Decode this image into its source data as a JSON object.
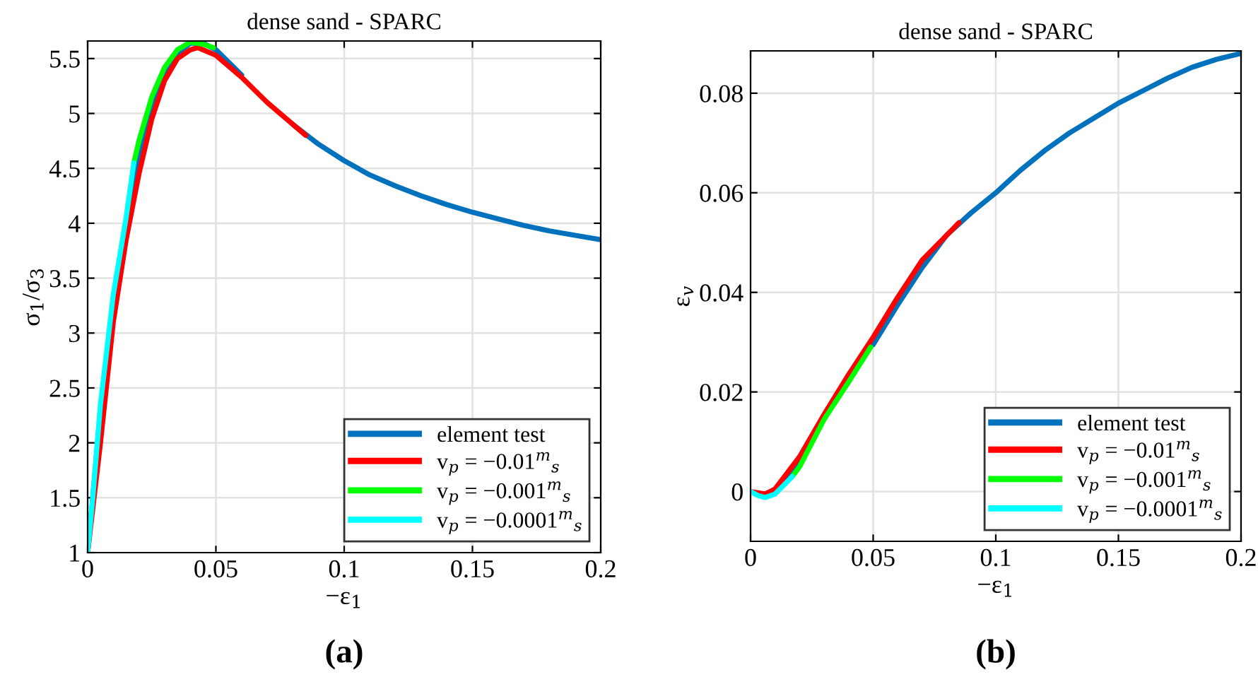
{
  "chart_data": [
    {
      "type": "line",
      "title": "dense sand - SPARC",
      "xlabel": "−ε$_{1}$",
      "ylabel": "σ$_{1}$/σ$_{3}$",
      "xlim": [
        0,
        0.2
      ],
      "xticks": [
        0,
        0.05,
        0.1,
        0.15,
        0.2
      ],
      "ylim": [
        1,
        5.66
      ],
      "yticks": [
        1,
        1.5,
        2,
        2.5,
        3,
        3.5,
        4,
        4.5,
        5,
        5.5
      ],
      "grid": true,
      "legend": "bottom right",
      "line_style": "solid",
      "annotations": [
        "(a)"
      ],
      "series": [
        {
          "name": "element test",
          "color": "#0072bd",
          "x": [
            0,
            0.002,
            0.005,
            0.01,
            0.015,
            0.02,
            0.025,
            0.03,
            0.035,
            0.04,
            0.045,
            0.05,
            0.06,
            0.07,
            0.08,
            0.09,
            0.1,
            0.11,
            0.12,
            0.13,
            0.14,
            0.15,
            0.16,
            0.17,
            0.18,
            0.19,
            0.2
          ],
          "values": [
            1,
            1.5,
            2.3,
            3.3,
            4.0,
            4.6,
            5.05,
            5.35,
            5.55,
            5.64,
            5.64,
            5.58,
            5.35,
            null,
            4.9,
            4.72,
            4.57,
            4.44,
            4.34,
            4.25,
            4.17,
            4.1,
            4.04,
            3.98,
            3.93,
            3.89,
            3.85
          ]
        },
        {
          "name": "v$_{p}$ = −0.01$^{m}$$_{s}$",
          "color": "#ff0000",
          "x": [
            0,
            0.005,
            0.01,
            0.015,
            0.02,
            0.025,
            0.03,
            0.035,
            0.04,
            0.043,
            0.05,
            0.06,
            0.07,
            0.08,
            0.085
          ],
          "values": [
            1,
            2.0,
            3.1,
            3.85,
            4.45,
            4.95,
            5.3,
            5.5,
            5.58,
            5.6,
            5.53,
            5.33,
            5.1,
            4.9,
            4.8
          ]
        },
        {
          "name": "v$_{p}$ = −0.001$^{m}$$_{s}$",
          "color": "#00ff00",
          "x": [
            0.018,
            0.02,
            0.025,
            0.03,
            0.035,
            0.04,
            0.045,
            0.049
          ],
          "values": [
            4.55,
            4.75,
            5.15,
            5.42,
            5.58,
            5.65,
            5.63,
            5.6
          ]
        },
        {
          "name": "v$_{p}$ = −0.0001$^{m}$$_{s}$",
          "color": "#00ffff",
          "x": [
            0,
            0.002,
            0.005,
            0.01,
            0.015,
            0.018
          ],
          "values": [
            1,
            1.5,
            2.35,
            3.35,
            4.05,
            4.55
          ]
        }
      ]
    },
    {
      "type": "line",
      "title": "dense sand - SPARC",
      "xlabel": "−ε$_{1}$",
      "ylabel": "ε$_{v}$",
      "xlim": [
        0,
        0.2
      ],
      "xticks": [
        0,
        0.05,
        0.1,
        0.15,
        0.2
      ],
      "ylim": [
        -0.01,
        0.0885
      ],
      "yticks": [
        0,
        0.02,
        0.04,
        0.06,
        0.08
      ],
      "grid": true,
      "legend": "bottom right",
      "line_style": "solid",
      "annotations": [
        "(b)"
      ],
      "series": [
        {
          "name": "element test",
          "color": "#0072bd",
          "x": [
            0,
            0.005,
            0.01,
            0.02,
            0.03,
            0.04,
            0.05,
            0.06,
            0.07,
            0.08,
            0.09,
            0.1,
            0.11,
            0.12,
            0.13,
            0.14,
            0.15,
            0.16,
            0.17,
            0.18,
            0.19,
            0.2
          ],
          "values": [
            0,
            -0.001,
            0.0,
            0.006,
            null,
            null,
            0.0295,
            0.0375,
            0.045,
            0.0515,
            0.056,
            0.06,
            0.0645,
            0.0685,
            0.072,
            0.075,
            0.078,
            0.0805,
            0.083,
            0.0852,
            0.0868,
            0.088
          ]
        },
        {
          "name": "v$_{p}$ = −0.01$^{m}$$_{s}$",
          "color": "#ff0000",
          "x": [
            0,
            0.006,
            0.01,
            0.02,
            0.03,
            0.04,
            0.05,
            0.06,
            0.07,
            0.08,
            0.085
          ],
          "values": [
            0.0,
            -0.0005,
            0.0005,
            0.007,
            0.0155,
            0.0235,
            0.031,
            0.039,
            0.0465,
            0.0515,
            0.054
          ]
        },
        {
          "name": "v$_{p}$ = −0.001$^{m}$$_{s}$",
          "color": "#00ff00",
          "x": [
            0.017,
            0.02,
            0.03,
            0.04,
            0.049
          ],
          "values": [
            0.003,
            0.005,
            0.0145,
            0.022,
            0.029
          ]
        },
        {
          "name": "v$_{p}$ = −0.0001$^{m}$$_{s}$",
          "color": "#00ffff",
          "x": [
            0,
            0.003,
            0.006,
            0.01,
            0.015,
            0.017
          ],
          "values": [
            0,
            -0.0008,
            -0.0012,
            -0.0005,
            0.002,
            0.003
          ]
        }
      ]
    }
  ]
}
